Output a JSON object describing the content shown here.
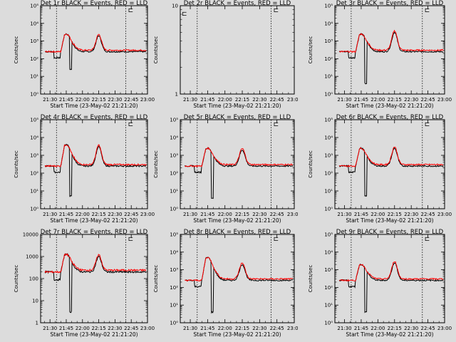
{
  "figure": {
    "background": "#dcdcdc",
    "events_color": "#000000",
    "lld_color": "#ff0000",
    "marker_glyph": "⊏"
  },
  "time_axis": {
    "xlabel": "Start Time (23-May-02 21:21:20)",
    "ticks": [
      "21:30",
      "21:45",
      "22:00",
      "22:15",
      "22:30",
      "22:45",
      "23:00"
    ],
    "xlim": [
      "21:21:20",
      "23:00"
    ],
    "markers": [
      "21:36",
      "22:40"
    ]
  },
  "chart_data": [
    {
      "id": "det1r",
      "type": "line",
      "title": "Det 1r BLACK = Events, RED = LLD",
      "ylabel": "Counts/sec",
      "yscale": "log",
      "ylim": [
        1,
        100000
      ],
      "yticks": [
        {
          "v": 1,
          "l": "10⁰"
        },
        {
          "v": 10,
          "l": "10¹"
        },
        {
          "v": 100,
          "l": "10²"
        },
        {
          "v": 1000,
          "l": "10³"
        },
        {
          "v": 10000,
          "l": "10⁴"
        },
        {
          "v": 100000,
          "l": "10⁵"
        }
      ],
      "dip_log": 1.4,
      "peak1_log": 3.4,
      "peak2_log": 3.3,
      "base_log": 2.4,
      "series": [
        {
          "name": "Events",
          "profile": "events"
        },
        {
          "name": "LLD",
          "profile": "lld"
        }
      ]
    },
    {
      "id": "det2r",
      "type": "line",
      "title": "Det 2r BLACK = Events, RED = LLD",
      "ylabel": "Counts/sec",
      "yscale": "log",
      "ylim": [
        1,
        10
      ],
      "yticks": [
        {
          "v": 1,
          "l": "1"
        },
        {
          "v": 10,
          "l": "10"
        }
      ],
      "empty": true,
      "series": []
    },
    {
      "id": "det3r",
      "type": "line",
      "title": "Det 3r BLACK = Events, RED = LLD",
      "ylabel": "Counts/sec",
      "yscale": "log",
      "ylim": [
        1,
        100000
      ],
      "yticks": [
        {
          "v": 1,
          "l": "10⁰"
        },
        {
          "v": 10,
          "l": "10¹"
        },
        {
          "v": 100,
          "l": "10²"
        },
        {
          "v": 1000,
          "l": "10³"
        },
        {
          "v": 10000,
          "l": "10⁴"
        },
        {
          "v": 100000,
          "l": "10⁵"
        }
      ],
      "dip_log": 0.6,
      "peak1_log": 3.4,
      "peak2_log": 3.5,
      "base_log": 2.4,
      "series": [
        {
          "name": "Events",
          "profile": "events"
        },
        {
          "name": "LLD",
          "profile": "lld"
        }
      ]
    },
    {
      "id": "det4r",
      "type": "line",
      "title": "Det 4r BLACK = Events, RED = LLD",
      "ylabel": "Counts/sec",
      "yscale": "log",
      "ylim": [
        1,
        100000
      ],
      "yticks": [
        {
          "v": 1,
          "l": "10⁰"
        },
        {
          "v": 10,
          "l": "10¹"
        },
        {
          "v": 100,
          "l": "10²"
        },
        {
          "v": 1000,
          "l": "10³"
        },
        {
          "v": 10000,
          "l": "10⁴"
        },
        {
          "v": 100000,
          "l": "10⁵"
        }
      ],
      "dip_log": 0.7,
      "peak1_log": 3.6,
      "peak2_log": 3.5,
      "base_log": 2.4,
      "series": [
        {
          "name": "Events",
          "profile": "events"
        },
        {
          "name": "LLD",
          "profile": "lld"
        }
      ]
    },
    {
      "id": "det5r",
      "type": "line",
      "title": "Det 5r BLACK = Events, RED = LLD",
      "ylabel": "Counts/sec",
      "yscale": "log",
      "ylim": [
        1,
        100000
      ],
      "yticks": [
        {
          "v": 1,
          "l": "10⁰"
        },
        {
          "v": 10,
          "l": "10¹"
        },
        {
          "v": 100,
          "l": "10²"
        },
        {
          "v": 1000,
          "l": "10³"
        },
        {
          "v": 10000,
          "l": "10⁴"
        },
        {
          "v": 100000,
          "l": "10⁵"
        }
      ],
      "dip_log": 0.6,
      "peak1_log": 3.4,
      "peak2_log": 3.3,
      "base_log": 2.4,
      "series": [
        {
          "name": "Events",
          "profile": "events"
        },
        {
          "name": "LLD",
          "profile": "lld"
        }
      ]
    },
    {
      "id": "det6r",
      "type": "line",
      "title": "Det 6r BLACK = Events, RED = LLD",
      "ylabel": "Counts/sec",
      "yscale": "log",
      "ylim": [
        1,
        100000
      ],
      "yticks": [
        {
          "v": 1,
          "l": "10⁰"
        },
        {
          "v": 10,
          "l": "10¹"
        },
        {
          "v": 100,
          "l": "10²"
        },
        {
          "v": 1000,
          "l": "10³"
        },
        {
          "v": 10000,
          "l": "10⁴"
        },
        {
          "v": 100000,
          "l": "10⁵"
        }
      ],
      "dip_log": 0.7,
      "peak1_log": 3.4,
      "peak2_log": 3.4,
      "base_log": 2.4,
      "series": [
        {
          "name": "Events",
          "profile": "events"
        },
        {
          "name": "LLD",
          "profile": "lld"
        }
      ]
    },
    {
      "id": "det7r",
      "type": "line",
      "title": "Det 7r BLACK = Events, RED = LLD",
      "ylabel": "Counts/sec",
      "yscale": "log",
      "ylim": [
        1,
        10000
      ],
      "yticks": [
        {
          "v": 1,
          "l": "1"
        },
        {
          "v": 10,
          "l": "10"
        },
        {
          "v": 100,
          "l": "100"
        },
        {
          "v": 1000,
          "l": "1000"
        },
        {
          "v": 10000,
          "l": "10000"
        }
      ],
      "dip_log": 0.5,
      "peak1_log": 3.1,
      "peak2_log": 3.0,
      "base_log": 2.3,
      "series": [
        {
          "name": "Events",
          "profile": "events"
        },
        {
          "name": "LLD",
          "profile": "lld"
        }
      ]
    },
    {
      "id": "det8r",
      "type": "line",
      "title": "Det 8r BLACK = Events, RED = LLD",
      "ylabel": "Counts/sec",
      "yscale": "log",
      "ylim": [
        1,
        100000
      ],
      "yticks": [
        {
          "v": 1,
          "l": "10⁰"
        },
        {
          "v": 10,
          "l": "10¹"
        },
        {
          "v": 100,
          "l": "10²"
        },
        {
          "v": 1000,
          "l": "10³"
        },
        {
          "v": 10000,
          "l": "10⁴"
        },
        {
          "v": 100000,
          "l": "10⁵"
        }
      ],
      "dip_log": 0.6,
      "peak1_log": 3.7,
      "peak2_log": 3.3,
      "base_log": 2.4,
      "series": [
        {
          "name": "Events",
          "profile": "events"
        },
        {
          "name": "LLD",
          "profile": "lld"
        }
      ]
    },
    {
      "id": "det9r",
      "type": "line",
      "title": "Det 9r BLACK = Events, RED = LLD",
      "ylabel": "Counts/sec",
      "yscale": "log",
      "ylim": [
        1,
        100000
      ],
      "yticks": [
        {
          "v": 1,
          "l": "10⁰"
        },
        {
          "v": 10,
          "l": "10¹"
        },
        {
          "v": 100,
          "l": "10²"
        },
        {
          "v": 1000,
          "l": "10³"
        },
        {
          "v": 10000,
          "l": "10⁴"
        },
        {
          "v": 100000,
          "l": "10⁵"
        }
      ],
      "dip_log": 0.6,
      "peak1_log": 3.3,
      "peak2_log": 3.4,
      "base_log": 2.4,
      "series": [
        {
          "name": "Events",
          "profile": "events"
        },
        {
          "name": "LLD",
          "profile": "lld"
        }
      ]
    }
  ]
}
